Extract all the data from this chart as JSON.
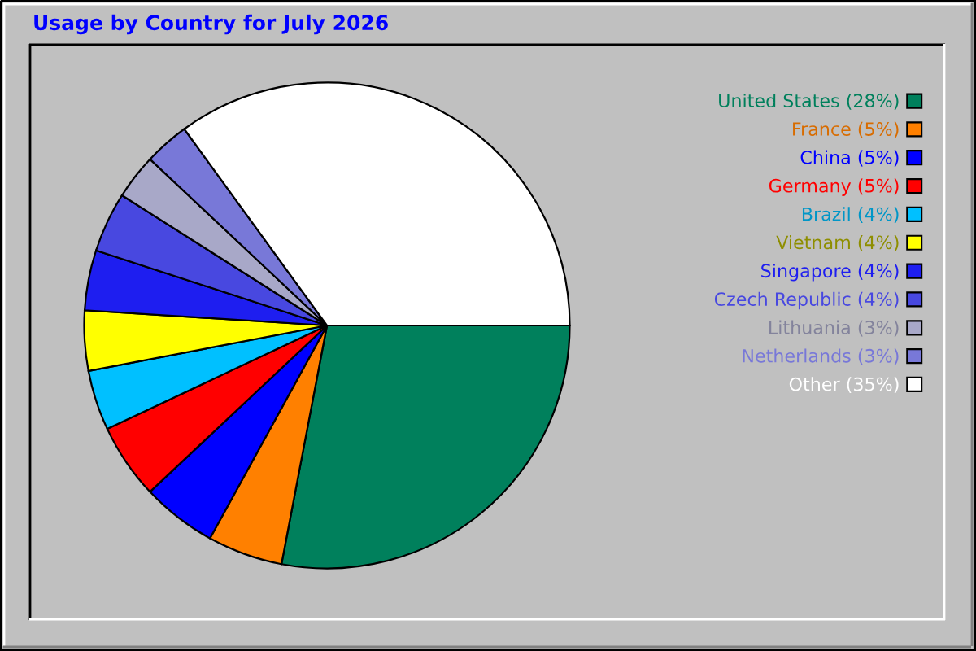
{
  "chart_data": {
    "type": "pie",
    "title": "Usage by Country for July 2026",
    "categories": [
      "United States (28%)",
      "France (5%)",
      "China (5%)",
      "Germany (5%)",
      "Brazil (4%)",
      "Vietnam (4%)",
      "Singapore (4%)",
      "Czech Republic (4%)",
      "Lithuania (3%)",
      "Netherlands (3%)",
      "Other (35%)"
    ],
    "values": [
      28,
      5,
      5,
      5,
      4,
      4,
      4,
      4,
      3,
      3,
      35
    ],
    "colors": [
      "#00805c",
      "#ff8000",
      "#0000ff",
      "#ff0000",
      "#00c0ff",
      "#ffff00",
      "#1e1ef0",
      "#4848e0",
      "#a8a8c8",
      "#7878d8",
      "#ffffff"
    ],
    "legend": "right"
  }
}
